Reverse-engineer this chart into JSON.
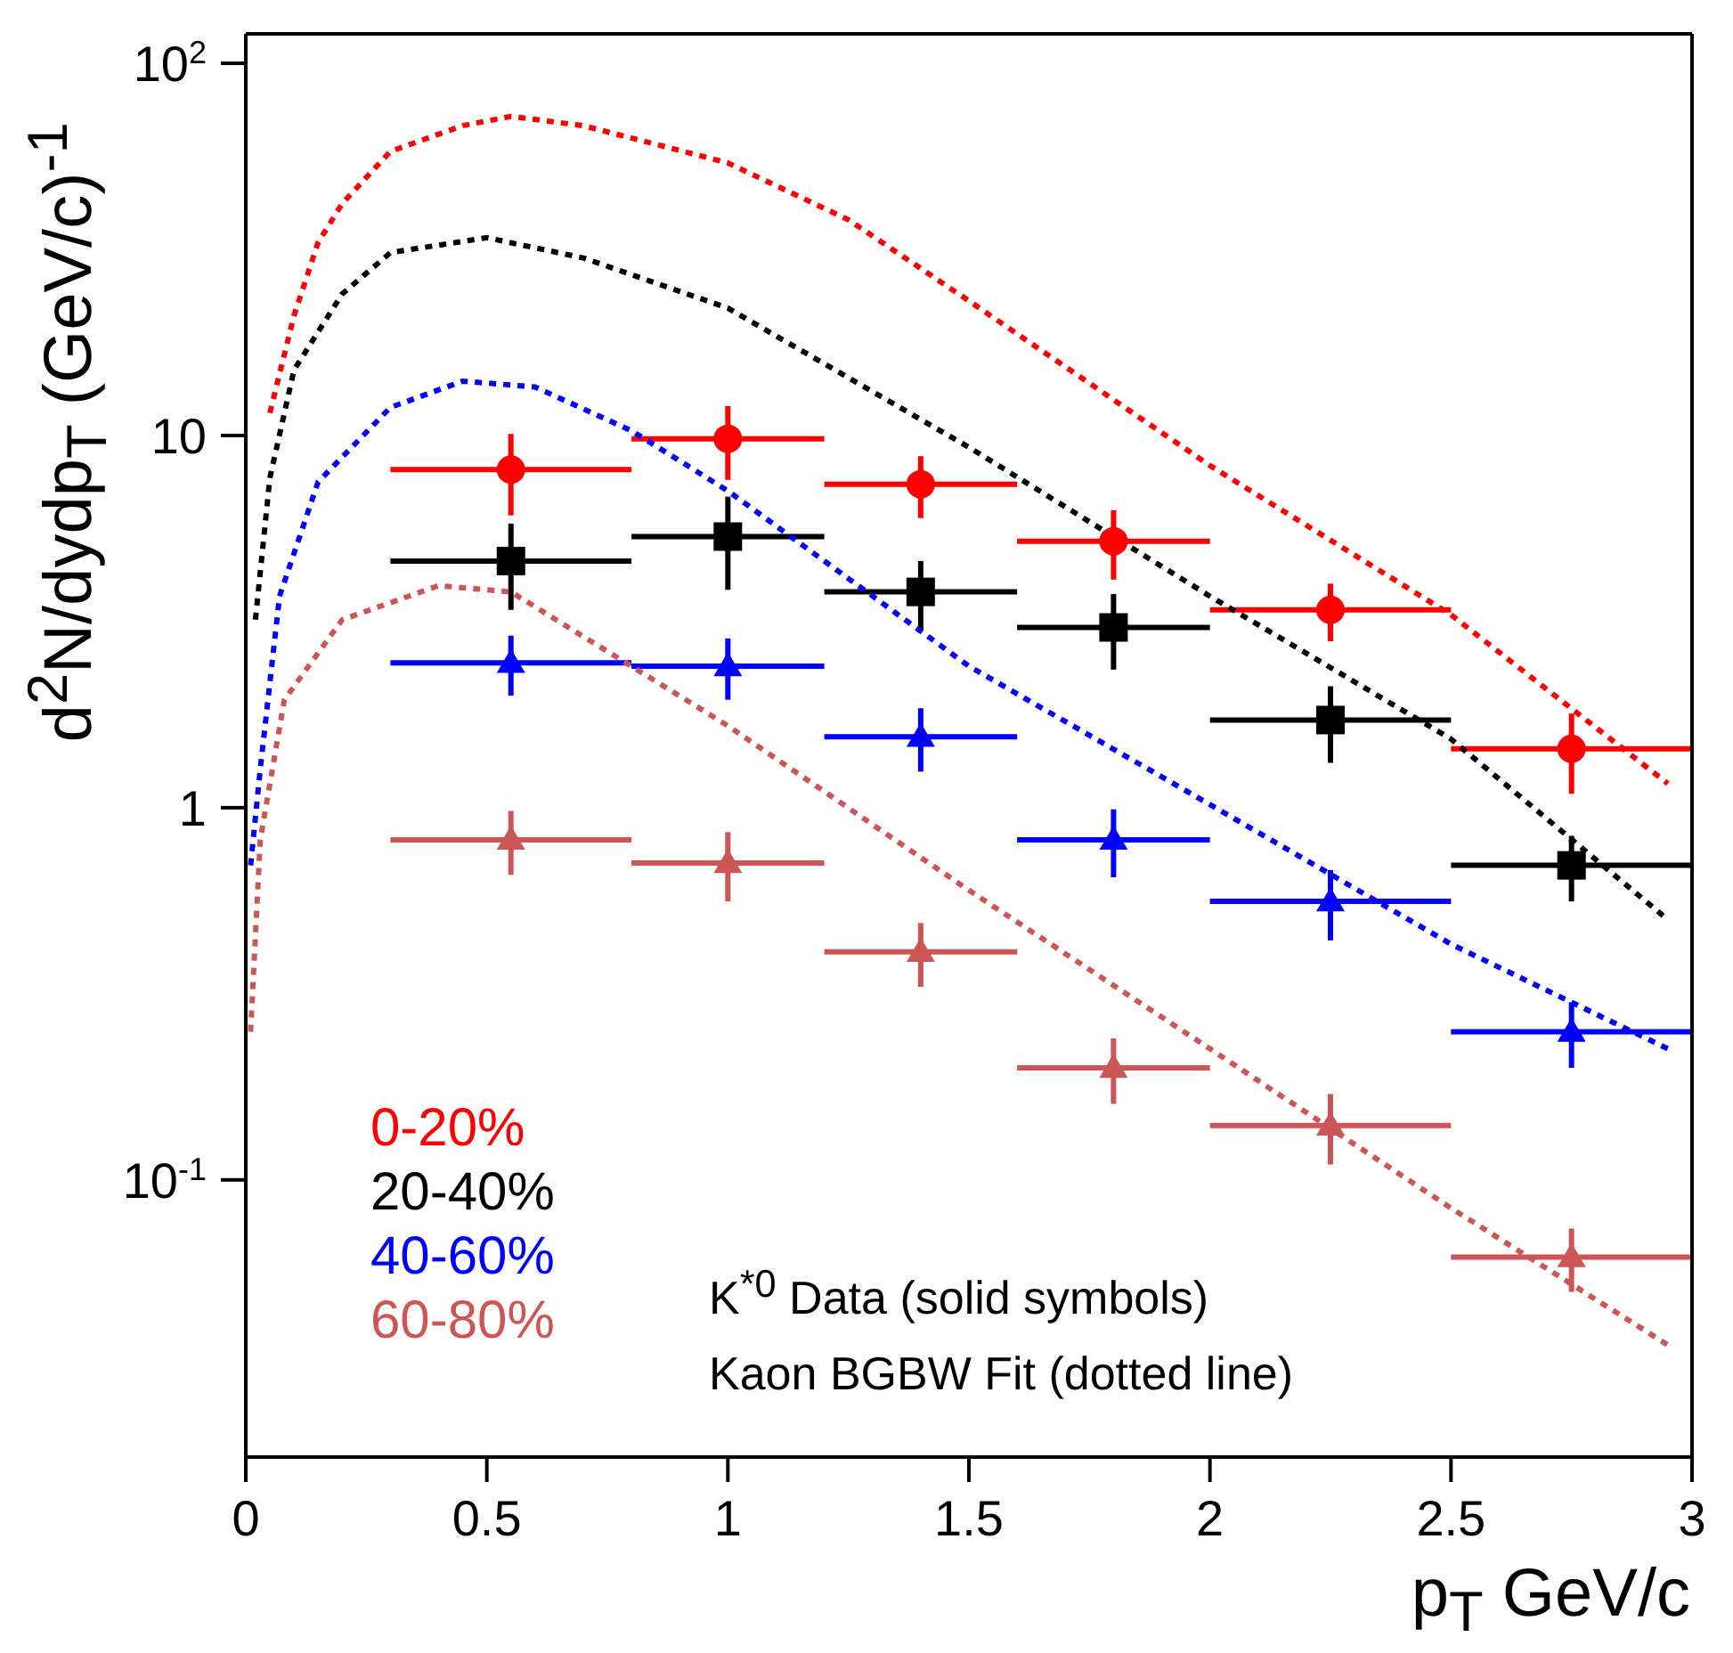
{
  "chart_data": {
    "type": "scatter",
    "xlabel": "p$_{T}$ GeV/c",
    "ylabel": "d$^{2}$N/dydp$_{T}$ (GeV/c)$^{-1}$",
    "annotations": [
      "K$^{*0}$ Data (solid symbols)",
      "Kaon BGBW Fit (dotted line)"
    ],
    "x": [
      0.55,
      1.0,
      1.4,
      1.8,
      2.25,
      2.75
    ],
    "series": [
      {
        "name": "0-20%",
        "color": "#ff0000",
        "marker": "circle",
        "values": [
          8.1,
          9.8,
          7.4,
          5.2,
          3.4,
          1.44
        ],
        "errors": [
          2,
          2.2,
          1.4,
          1.1,
          0.6,
          0.35
        ],
        "xerrors": [
          0.25,
          0.2,
          0.2,
          0.2,
          0.25,
          0.25
        ]
      },
      {
        "name": "20-40%",
        "color": "#000000",
        "marker": "square",
        "values": [
          4.6,
          5.35,
          3.8,
          3.05,
          1.72,
          0.7
        ],
        "errors": [
          1.2,
          1.5,
          0.8,
          0.7,
          0.4,
          0.14
        ],
        "xerrors": [
          0.25,
          0.2,
          0.2,
          0.2,
          0.25,
          0.25
        ]
      },
      {
        "name": "40-60%",
        "color": "#0000ff",
        "marker": "triangle",
        "values": [
          2.45,
          2.4,
          1.55,
          0.82,
          0.56,
          0.25
        ],
        "errors": [
          0.45,
          0.45,
          0.3,
          0.17,
          0.12,
          0.05
        ],
        "xerrors": [
          0.25,
          0.2,
          0.2,
          0.2,
          0.25,
          0.25
        ]
      },
      {
        "name": "60-80%",
        "color": "#cc5555",
        "marker": "triangle",
        "values": [
          0.82,
          0.71,
          0.41,
          0.2,
          0.14,
          0.062
        ],
        "errors": [
          0.16,
          0.15,
          0.08,
          0.04,
          0.03,
          0.012
        ],
        "xerrors": [
          0.25,
          0.2,
          0.2,
          0.2,
          0.25,
          0.25
        ]
      },
      {
        "type": "line",
        "color": "#ff0000",
        "line_style": "dotted",
        "marker": "none",
        "x": [
          0.05,
          0.1,
          0.15,
          0.2,
          0.3,
          0.45,
          0.55,
          0.7,
          1.0,
          1.25,
          1.5,
          2.0,
          2.5,
          2.95
        ],
        "values": [
          11.5,
          21,
          33,
          42,
          58,
          68,
          72,
          68,
          54,
          38,
          23,
          8.3,
          3.3,
          1.16
        ]
      },
      {
        "type": "line",
        "color": "#000000",
        "line_style": "dotted",
        "marker": "none",
        "x": [
          0.02,
          0.05,
          0.1,
          0.2,
          0.3,
          0.5,
          0.7,
          1.0,
          1.5,
          2.0,
          2.5,
          2.95
        ],
        "values": [
          3.2,
          7.7,
          15,
          24,
          31,
          34,
          30,
          22,
          9.3,
          3.7,
          1.53,
          0.5
        ]
      },
      {
        "type": "line",
        "color": "#0000ff",
        "line_style": "dotted",
        "marker": "none",
        "x": [
          0.01,
          0.03,
          0.07,
          0.15,
          0.3,
          0.45,
          0.6,
          0.8,
          1.0,
          1.5,
          2.0,
          2.5,
          2.95
        ],
        "values": [
          0.7,
          1.27,
          3.7,
          7.5,
          11.9,
          14,
          13.5,
          10.3,
          7.1,
          2.4,
          1.02,
          0.43,
          0.225
        ]
      },
      {
        "type": "line",
        "color": "#cc5555",
        "line_style": "dotted",
        "marker": "none",
        "x": [
          0.01,
          0.03,
          0.08,
          0.2,
          0.4,
          0.55,
          0.8,
          1.0,
          1.5,
          2.0,
          2.5,
          2.95
        ],
        "values": [
          0.25,
          0.82,
          1.95,
          3.2,
          3.95,
          3.8,
          2.4,
          1.66,
          0.6,
          0.225,
          0.084,
          0.036
        ]
      }
    ],
    "xlim": [
      0,
      3
    ],
    "xticks": [
      0,
      0.5,
      1,
      1.5,
      2,
      2.5,
      3
    ],
    "ylim": [
      0.018,
      120
    ],
    "yticks": [
      {
        "value": 0.1,
        "label": "10$^{-1}$"
      },
      1,
      10,
      {
        "value": 100,
        "label": "10$^{2}$"
      }
    ],
    "log": "y",
    "grid": false,
    "legend": "bottom left"
  }
}
